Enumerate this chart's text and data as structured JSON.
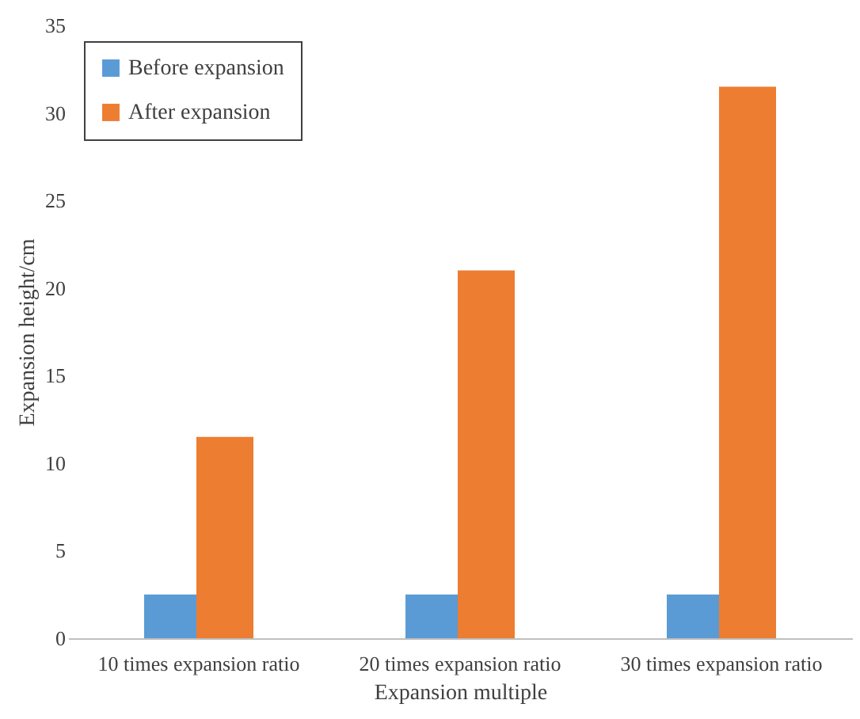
{
  "chart_data": {
    "type": "bar",
    "xlabel": "Expansion multiple",
    "ylabel": "Expansion height/cm",
    "categories": [
      "10 times expansion ratio",
      "20 times expansion ratio",
      "30 times expansion ratio"
    ],
    "series": [
      {
        "name": "Before expansion",
        "color": "#5b9bd5",
        "values": [
          2.5,
          2.5,
          2.5
        ]
      },
      {
        "name": "After expansion",
        "color": "#ed7d31",
        "values": [
          11.5,
          21,
          31.5
        ]
      }
    ],
    "ylim": [
      0,
      35
    ],
    "yticks": [
      0,
      5,
      10,
      15,
      20,
      25,
      30,
      35
    ],
    "grid": false,
    "legend": "top left"
  }
}
